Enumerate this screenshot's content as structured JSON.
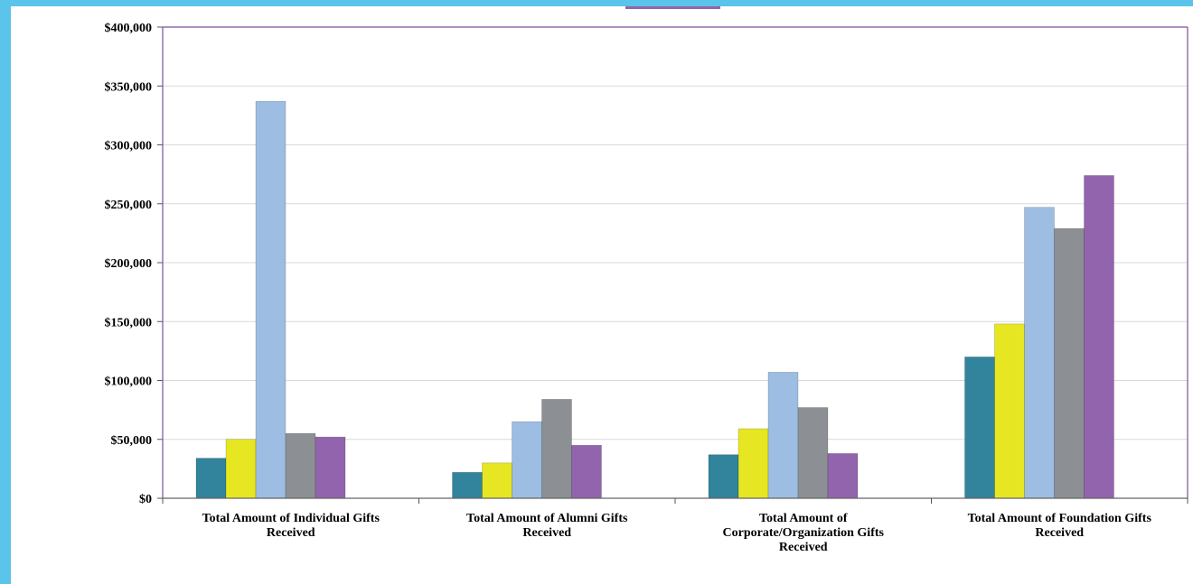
{
  "chart_data": {
    "type": "bar",
    "title": "",
    "xlabel": "",
    "ylabel": "",
    "ylim": [
      0,
      400000
    ],
    "y_ticks": [
      "$0",
      "$50,000",
      "$100,000",
      "$150,000",
      "$200,000",
      "$250,000",
      "$300,000",
      "$350,000",
      "$400,000"
    ],
    "grid": true,
    "categories": [
      [
        "Total Amount of Individual Gifts",
        "Received"
      ],
      [
        "Total Amount of Alumni Gifts",
        "Received"
      ],
      [
        "Total Amount of",
        "Corporate/Organization Gifts",
        "Received"
      ],
      [
        "Total Amount of Foundation Gifts",
        "Received"
      ]
    ],
    "series": [
      {
        "color": "#31849b",
        "values": [
          34000,
          22000,
          37000,
          120000
        ]
      },
      {
        "color": "#e6e622",
        "values": [
          50000,
          30000,
          59000,
          148000
        ]
      },
      {
        "color": "#9dbde3",
        "values": [
          337000,
          65000,
          107000,
          247000
        ]
      },
      {
        "color": "#8c8f93",
        "values": [
          55000,
          84000,
          77000,
          229000
        ]
      },
      {
        "color": "#9264ad",
        "values": [
          52000,
          45000,
          38000,
          274000
        ]
      }
    ],
    "colors": {
      "page_background": "#5bc4ea",
      "plot_border": "#7a4f9e",
      "grid": "#d9d9d9"
    }
  }
}
